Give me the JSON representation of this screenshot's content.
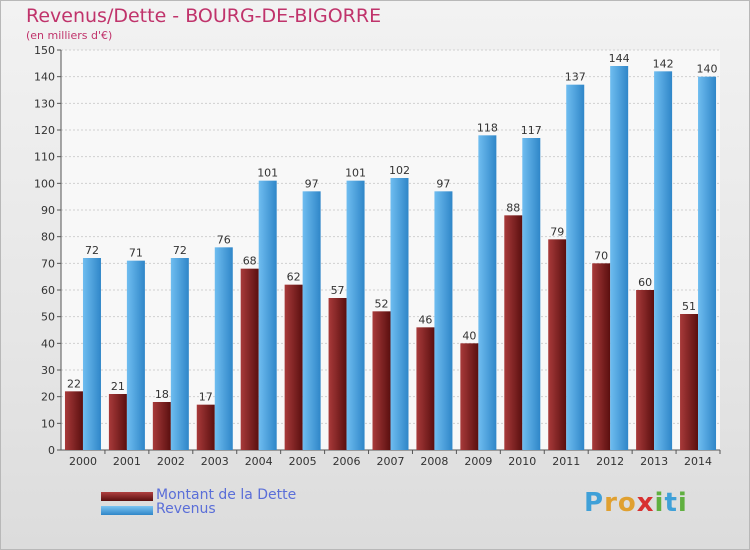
{
  "title": "Revenus/Dette - BOURG-DE-BIGORRE",
  "subtitle": "(en milliers d'€)",
  "logo": {
    "letters": [
      {
        "ch": "P",
        "color": "#3fa0d8"
      },
      {
        "ch": "r",
        "color": "#e0a030"
      },
      {
        "ch": "o",
        "color": "#e0a030"
      },
      {
        "ch": "x",
        "color": "#d83030"
      },
      {
        "ch": "i",
        "color": "#60b040"
      },
      {
        "ch": "t",
        "color": "#3fa0d8"
      },
      {
        "ch": "i",
        "color": "#60b040"
      }
    ]
  },
  "legend": [
    {
      "label": "Montant de la Dette",
      "color": "#7a1a1a"
    },
    {
      "label": "Revenus",
      "color": "#4ea8e6"
    }
  ],
  "chart_data": {
    "type": "bar",
    "title": "Revenus/Dette - BOURG-DE-BIGORRE",
    "subtitle": "(en milliers d'€)",
    "categories": [
      "2000",
      "2001",
      "2002",
      "2003",
      "2004",
      "2005",
      "2006",
      "2007",
      "2008",
      "2009",
      "2010",
      "2011",
      "2012",
      "2013",
      "2014"
    ],
    "series": [
      {
        "name": "Montant de la Dette",
        "color": "#7a1a1a",
        "values": [
          22,
          21,
          18,
          17,
          68,
          62,
          57,
          52,
          46,
          40,
          88,
          79,
          70,
          60,
          51
        ]
      },
      {
        "name": "Revenus",
        "color": "#4ea8e6",
        "values": [
          72,
          71,
          72,
          76,
          101,
          97,
          101,
          102,
          97,
          118,
          117,
          137,
          144,
          142,
          140
        ]
      }
    ],
    "ylim": [
      0,
      150
    ],
    "yticks": [
      0,
      10,
      20,
      30,
      40,
      50,
      60,
      70,
      80,
      90,
      100,
      110,
      120,
      130,
      140,
      150
    ],
    "grid": true,
    "legend_position": "bottom-left"
  }
}
